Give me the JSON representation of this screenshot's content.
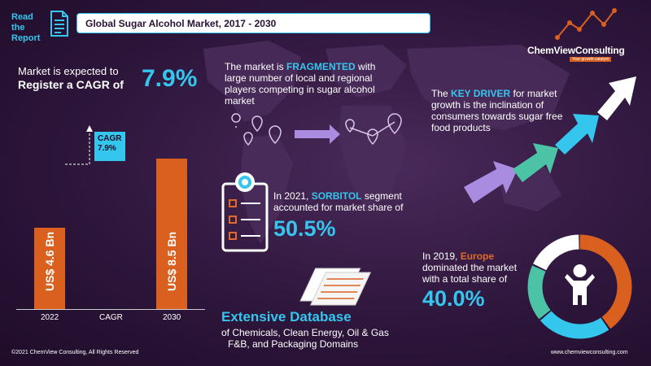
{
  "header": {
    "read_line1": "Read the",
    "read_line2": "Report",
    "title": "Global Sugar Alcohol Market, 2017  - 2030"
  },
  "logo": {
    "name": "ChemViewConsulting",
    "tagline": "Your growth catalyst"
  },
  "cagr_intro": {
    "line1": "Market is expected to",
    "line2": "Register a CAGR of",
    "value": "7.9%"
  },
  "chart_data": {
    "type": "bar",
    "categories": [
      "2022",
      "CAGR",
      "2030"
    ],
    "values": [
      4.6,
      null,
      8.5
    ],
    "bar_labels": [
      "US$ 4.6 Bn",
      "",
      "US$ 8.5 Bn"
    ],
    "cagr_label": "CAGR",
    "cagr_value": "7.9%",
    "ylim": [
      0,
      9.2
    ]
  },
  "fragmented": {
    "pre": "The market is ",
    "highlight": "FRAGMENTED",
    "rest": "with large number of local and regional players competing in sugar alcohol market"
  },
  "driver": {
    "pre": "The ",
    "highlight": "KEY DRIVER",
    "rest": " for market growth is the inclination of consumers towards sugar free food products"
  },
  "sorbitol": {
    "pre": "In 2021, ",
    "highlight": "SORBITOL",
    "rest": " segment accounted for market share of",
    "value": "50.5%"
  },
  "europe": {
    "pre": "In 2019, ",
    "highlight": "Europe",
    "rest": " dominated the market with a total share of",
    "value": "40.0%"
  },
  "database": {
    "title": "Extensive Database",
    "line1": "of Chemicals, Clean Energy, Oil & Gas",
    "line2": "F&B, and Packaging Domains"
  },
  "footer": {
    "copyright": "©2021  ChemView  Consulting,  All Rights Reserved",
    "website": "www.chemviewconsulting.com"
  },
  "colors": {
    "accent": "#35c6ee",
    "orange": "#d9601f",
    "purple": "#a98be0",
    "green": "#4cc3a4",
    "background": "#2a1236"
  },
  "donut": {
    "europe_share": 40.0
  }
}
